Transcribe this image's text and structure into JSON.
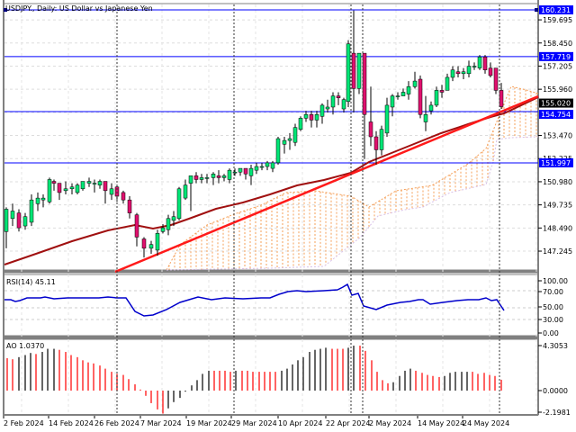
{
  "header": {
    "title": "USDJPY., Daily:  US Dollar vs Japanese Yen"
  },
  "price_axis": {
    "ticks": [
      "159.695",
      "158.450",
      "157.205",
      "155.960",
      "153.470",
      "152.225",
      "150.980",
      "149.735",
      "148.490",
      "147.245"
    ],
    "tags": [
      {
        "label": "160.231",
        "value": 160.231,
        "color": "#0000ff"
      },
      {
        "label": "157.719",
        "value": 157.719,
        "color": "#0000ff"
      },
      {
        "label": "155.020",
        "value": 155.02,
        "color": "#000000"
      },
      {
        "label": "154.754",
        "value": 154.754,
        "color": "#0000ff"
      },
      {
        "label": "151.997",
        "value": 151.997,
        "color": "#0000ff"
      }
    ]
  },
  "rsi_panel": {
    "label": "RSI(14) 45.11",
    "ticks": [
      "100.00",
      "70.00",
      "50.00",
      "30.00",
      "0.00"
    ]
  },
  "ao_panel": {
    "label": "AO 1.0370",
    "ticks": [
      "4.3053",
      "0.0000",
      "-2.1981"
    ]
  },
  "time_axis": {
    "labels": [
      "2 Feb 2024",
      "14 Feb 2024",
      "26 Feb 2024",
      "7 Mar 2024",
      "19 Mar 2024",
      "29 Mar 2024",
      "10 Apr 2024",
      "22 Apr 2024",
      "2 May 2024",
      "14 May 2024",
      "24 May 2024"
    ]
  },
  "colors": {
    "bull": "#00e676",
    "bear": "#e0106e",
    "hline": "#0000ff",
    "ma": "#a01010",
    "trend": "#ff1a1a",
    "cloud": "#f5a05a",
    "rsi": "#0000cc",
    "ao_up": "#333333",
    "ao_down": "#ff3030"
  },
  "chart_data": {
    "type": "candlestick",
    "title": "USDJPY., Daily: US Dollar vs Japanese Yen",
    "ylim": [
      146.5,
      160.8
    ],
    "horizontal_levels": [
      160.231,
      157.719,
      154.754,
      151.997
    ],
    "current_price": 155.02,
    "indicators": {
      "rsi14": 45.11,
      "ao": 1.037
    },
    "rsi_range": [
      0,
      100
    ],
    "ao_range": [
      -2.1981,
      4.3053
    ],
    "x_labels": [
      "2 Feb 2024",
      "14 Feb 2024",
      "26 Feb 2024",
      "7 Mar 2024",
      "19 Mar 2024",
      "29 Mar 2024",
      "10 Apr 2024",
      "22 Apr 2024",
      "2 May 2024",
      "14 May 2024",
      "24 May 2024"
    ]
  }
}
